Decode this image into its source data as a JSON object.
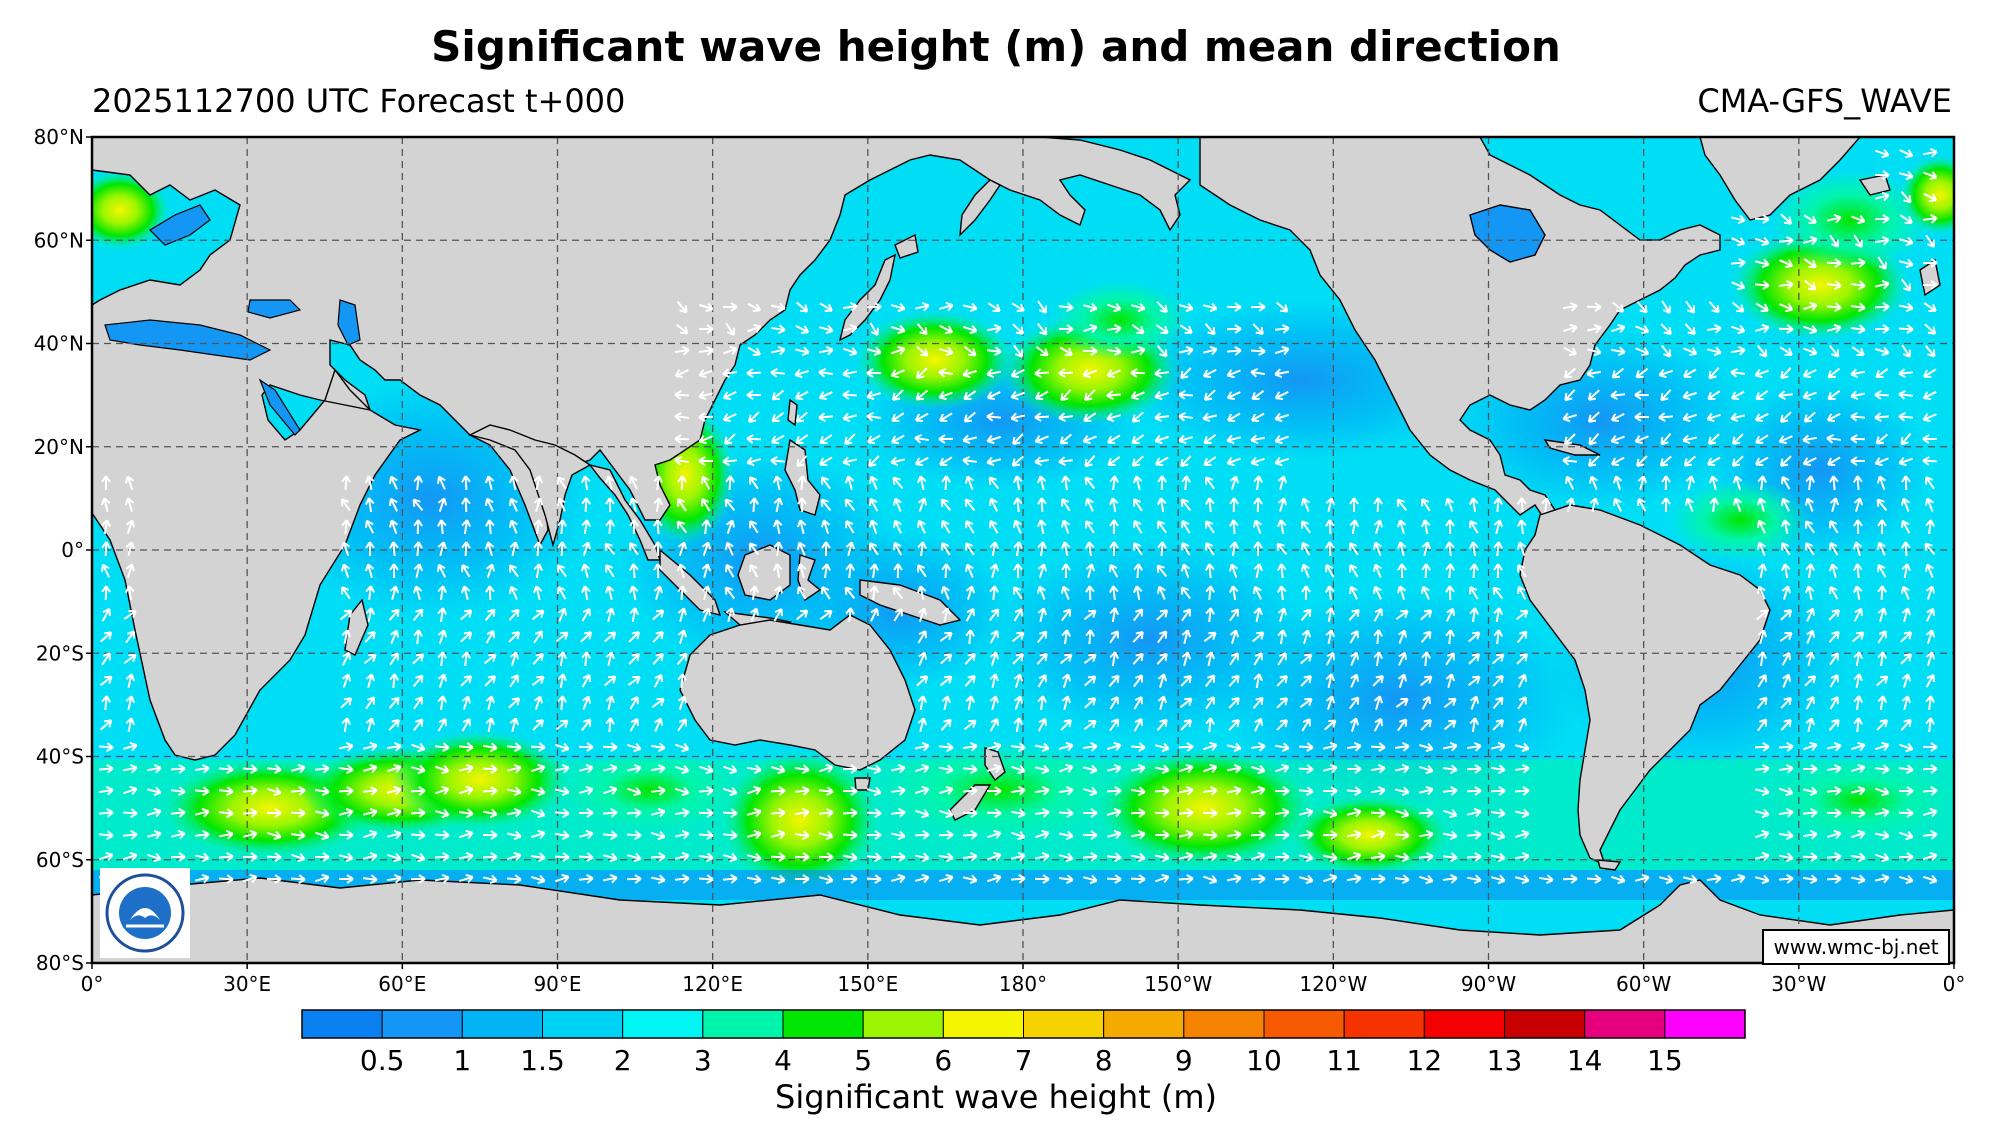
{
  "header": {
    "title": "Significant wave height (m) and mean direction",
    "subtitle": "2025112700 UTC Forecast t+000",
    "model": "CMA-GFS_WAVE"
  },
  "watermark": "www.wmc-bj.net",
  "map": {
    "projection": "equirectangular",
    "lon_range": [
      0,
      360
    ],
    "lat_range": [
      -80,
      80
    ],
    "grid": true,
    "land_color": "#d3d3d3",
    "lon_ticks": [
      "0°",
      "30°E",
      "60°E",
      "90°E",
      "120°E",
      "150°E",
      "180°",
      "150°W",
      "120°W",
      "90°W",
      "60°W",
      "30°W",
      "0°"
    ],
    "lat_ticks": [
      "80°N",
      "60°N",
      "40°N",
      "20°N",
      "0°",
      "20°S",
      "40°S",
      "60°S",
      "80°S"
    ]
  },
  "colorbar": {
    "label": "Significant wave height (m)",
    "colors": [
      "#0a7ff0",
      "#1496f5",
      "#00b4f5",
      "#00d2f5",
      "#00f5f5",
      "#00f5aa",
      "#00e600",
      "#9bf500",
      "#f5f500",
      "#f5d200",
      "#f5aa00",
      "#f58200",
      "#f55a00",
      "#f53200",
      "#f50000",
      "#c80000",
      "#e6007d",
      "#ff00ff"
    ],
    "tick_labels": [
      "0.5",
      "1",
      "1.5",
      "2",
      "3",
      "4",
      "5",
      "6",
      "7",
      "8",
      "9",
      "10",
      "11",
      "12",
      "13",
      "14",
      "15"
    ]
  },
  "logo": {
    "name": "CMA logo"
  }
}
